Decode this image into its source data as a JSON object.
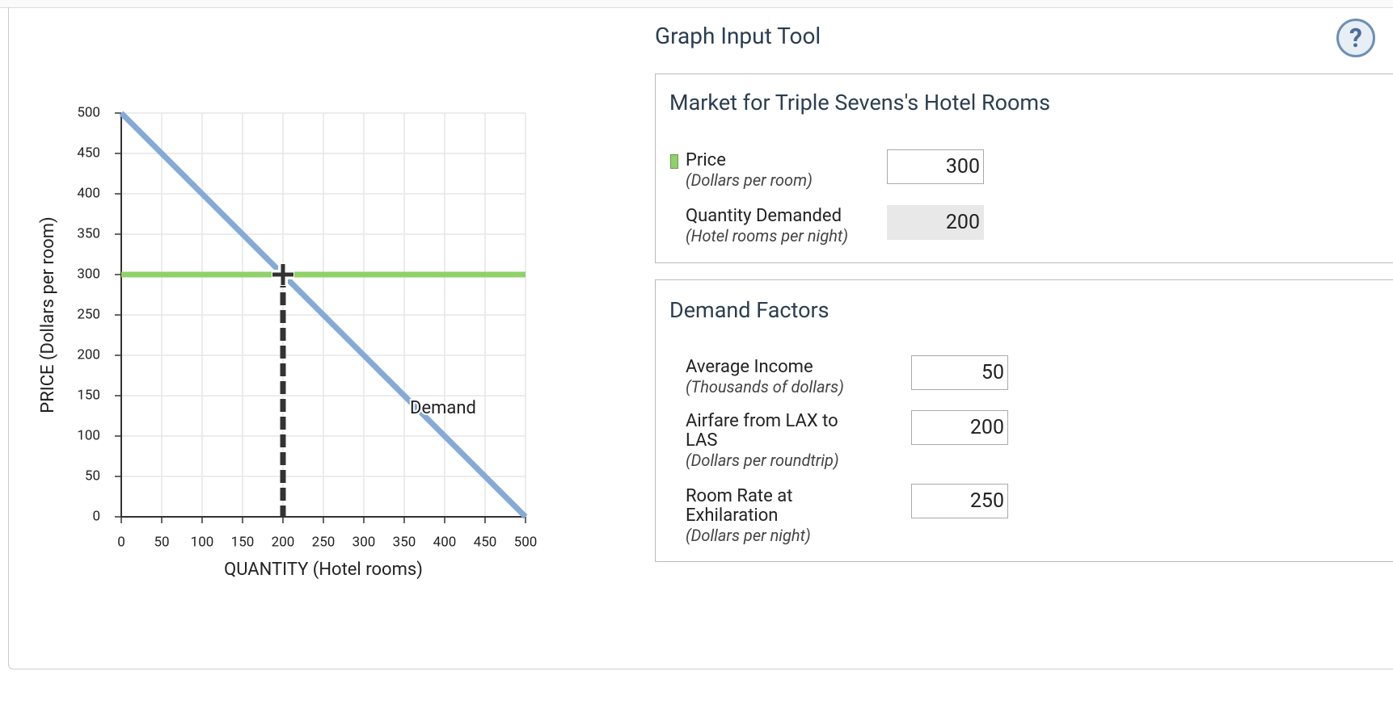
{
  "chart_data": {
    "type": "line",
    "x_label": "QUANTITY (Hotel rooms)",
    "y_label": "PRICE (Dollars per room)",
    "xlim": [
      0,
      500
    ],
    "ylim": [
      0,
      500
    ],
    "xticks": [
      0,
      50,
      100,
      150,
      200,
      250,
      300,
      350,
      400,
      450,
      500
    ],
    "yticks": [
      0,
      50,
      100,
      150,
      200,
      250,
      300,
      350,
      400,
      450,
      500
    ],
    "grid": true,
    "series": [
      {
        "name": "Demand",
        "color": "#84aad5",
        "x": [
          0,
          500
        ],
        "values": [
          500,
          0
        ]
      }
    ]
  },
  "tool": {
    "title": "Graph Input Tool",
    "help": "?",
    "panels": [
      {
        "title": "Market for Triple Sevens's Hotel Rooms",
        "rows": [
          {
            "label": "Price",
            "unit": "(Dollars per room)",
            "value": 300,
            "color": "#8fd16a"
          },
          {
            "label": "Quantity Demanded",
            "unit": "(Hotel rooms per night)",
            "value": 200
          }
        ]
      },
      {
        "title": "Demand Factors",
        "rows": [
          {
            "label": "Average Income",
            "unit": "(Thousands of dollars)",
            "value": 50
          },
          {
            "label": "Airfare from LAX to LAS",
            "unit": "(Dollars per roundtrip)",
            "value": 200
          },
          {
            "label": "Room Rate at Exhilaration",
            "unit": "(Dollars per night)",
            "value": 250
          }
        ]
      }
    ]
  }
}
